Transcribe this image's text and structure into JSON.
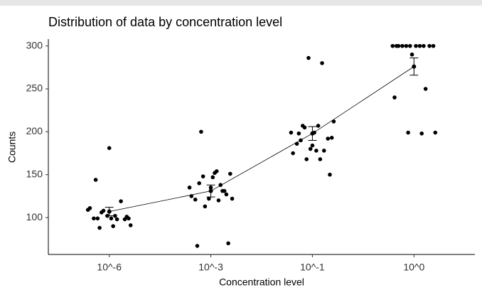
{
  "chart_data": {
    "type": "jitter",
    "title": "Distribution of data by concentration level",
    "x_label": "Concentration level",
    "y_label": "Counts",
    "categories": [
      "10^-6",
      "10^-3",
      "10^-1",
      "10^0"
    ],
    "points": [
      [
        109,
        106,
        102,
        99,
        99,
        99,
        98,
        99,
        102,
        119,
        111,
        108,
        98,
        91,
        88,
        90,
        101,
        144,
        181
      ],
      [
        138,
        135,
        148,
        154,
        151,
        140,
        147,
        127,
        121,
        122,
        131,
        125,
        113,
        120,
        122,
        200,
        152,
        70,
        67,
        135,
        131
      ],
      [
        286,
        280,
        199,
        205,
        207,
        193,
        190,
        199,
        192,
        186,
        180,
        178,
        175,
        168,
        168,
        212,
        207,
        178,
        150,
        198,
        184
      ],
      [
        300,
        300,
        300,
        300,
        300,
        300,
        300,
        300,
        300,
        300,
        300,
        290,
        250,
        240,
        199,
        198,
        199
      ]
    ],
    "means": [
      107,
      131,
      198,
      276
    ],
    "errors": [
      5,
      7,
      8,
      10
    ],
    "color": "#000000",
    "ylim": [
      57,
      308
    ],
    "yticks": [
      100,
      150,
      200,
      250,
      300
    ]
  }
}
